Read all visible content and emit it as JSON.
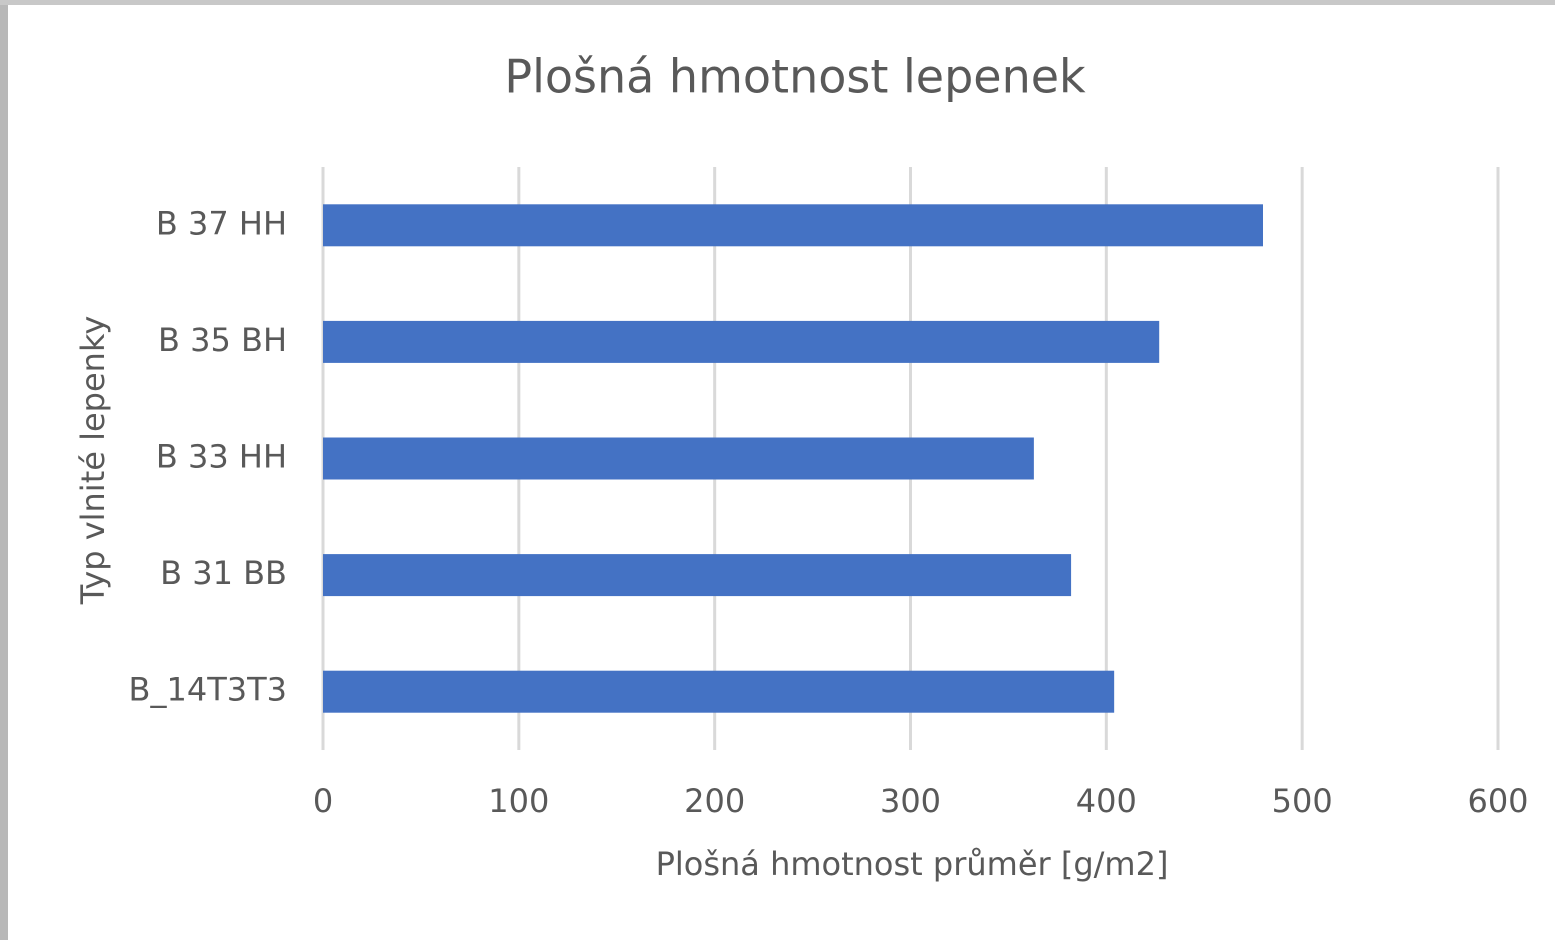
{
  "chart_data": {
    "type": "bar",
    "orientation": "horizontal",
    "title": "Plošná hmotnost lepenek",
    "x_label": "Plošná hmotnost průměr [g/m2]",
    "y_label": "Typ vlnité lepenky",
    "categories": [
      "B 37 HH",
      "B 35 BH",
      "B 33 HH",
      "B 31 BB",
      "B_14T3T3"
    ],
    "values": [
      480,
      427,
      363,
      382,
      404
    ],
    "color": "#4472c4",
    "xlim": [
      0,
      600
    ],
    "xticks": [
      0,
      100,
      200,
      300,
      400,
      500,
      600
    ],
    "grid": true
  }
}
